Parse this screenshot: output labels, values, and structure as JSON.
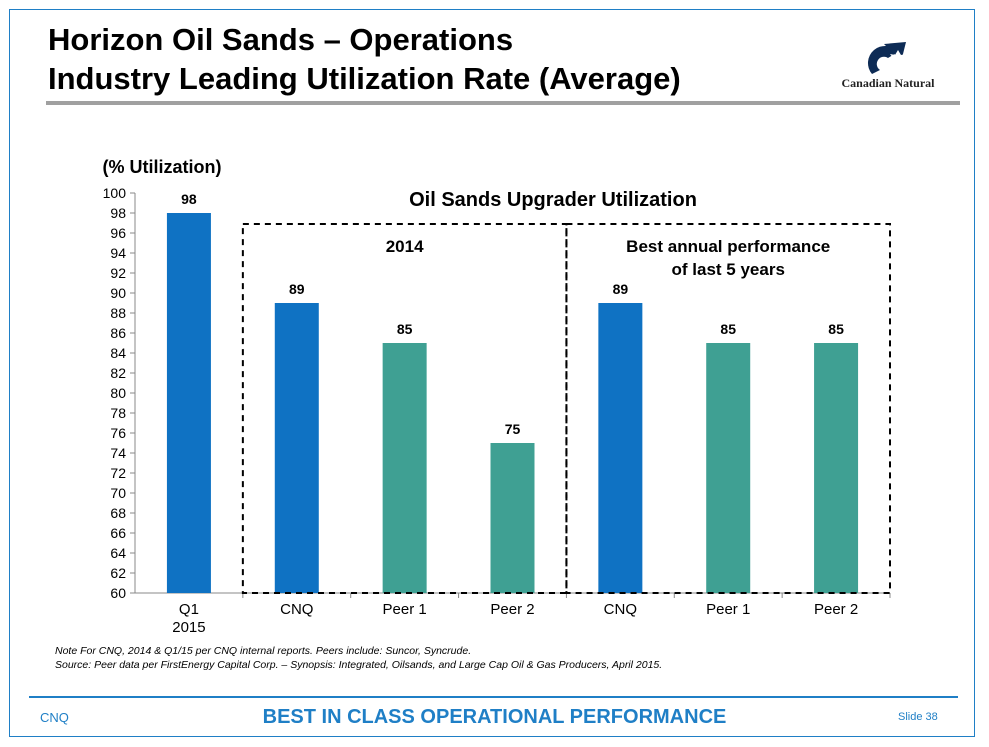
{
  "slide": {
    "title_line1": "Horizon Oil Sands – Operations",
    "title_line2": "Industry Leading Utilization Rate (Average)",
    "logo_text": "Canadian Natural",
    "note_line1": "Note For CNQ, 2014 & Q1/15 per CNQ internal reports. Peers include: Suncor, Syncrude.",
    "note_line2": "Source: Peer data per FirstEnergy Capital Corp. – Synopsis: Integrated, Oilsands, and Large Cap Oil & Gas Producers, April 2015.",
    "footer_left": "CNQ",
    "footer_center": "BEST IN CLASS OPERATIONAL PERFORMANCE",
    "footer_right": "Slide 38"
  },
  "chart_data": {
    "type": "bar",
    "title": "Oil Sands Upgrader Utilization",
    "ylabel": "(% Utilization)",
    "ylim": [
      60,
      100
    ],
    "ytick_step": 2,
    "categories": [
      {
        "label": [
          "Q1",
          "2015"
        ],
        "value": 98,
        "color": "#0f72c3"
      },
      {
        "label": [
          "CNQ"
        ],
        "value": 89,
        "color": "#0f72c3"
      },
      {
        "label": [
          "Peer 1"
        ],
        "value": 85,
        "color": "#3fa093"
      },
      {
        "label": [
          "Peer 2"
        ],
        "value": 75,
        "color": "#3fa093"
      },
      {
        "label": [
          "CNQ"
        ],
        "value": 89,
        "color": "#0f72c3"
      },
      {
        "label": [
          "Peer 1"
        ],
        "value": 85,
        "color": "#3fa093"
      },
      {
        "label": [
          "Peer 2"
        ],
        "value": 85,
        "color": "#3fa093"
      }
    ],
    "groups": [
      {
        "label": [
          "2014"
        ],
        "from": 1,
        "to": 3
      },
      {
        "label": [
          "Best annual performance",
          "of last 5 years"
        ],
        "from": 4,
        "to": 6
      }
    ],
    "grid": false
  }
}
